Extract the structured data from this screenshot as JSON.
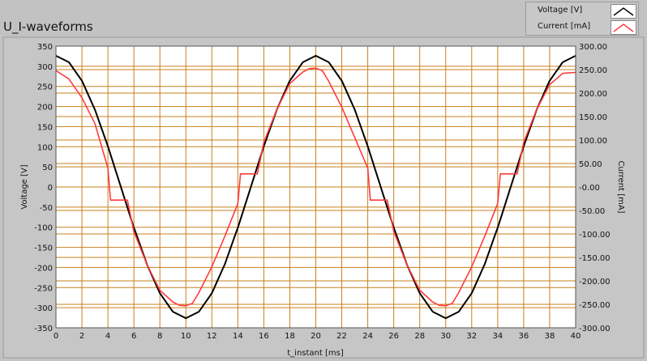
{
  "chart_data": {
    "type": "line",
    "title": "U_I-waveforms",
    "xlabel": "t_instant [ms]",
    "ylabel_left": "Voltage [V]",
    "ylabel_right": "Current [mA]",
    "xlim": [
      0,
      40
    ],
    "ylim_left": [
      -350,
      350
    ],
    "ylim_right": [
      -300,
      300
    ],
    "x_ticks": [
      "0",
      "2",
      "4",
      "6",
      "8",
      "10",
      "12",
      "14",
      "16",
      "18",
      "20",
      "22",
      "24",
      "26",
      "28",
      "30",
      "32",
      "34",
      "36",
      "38",
      "40"
    ],
    "y_left_ticks": [
      "350",
      "300",
      "250",
      "200",
      "150",
      "100",
      "50",
      "0",
      "-50",
      "-100",
      "-150",
      "-200",
      "-250",
      "-300",
      "-350"
    ],
    "y_right_ticks": [
      "300.00",
      "250.00",
      "200.00",
      "150.00",
      "100.00",
      "50.00",
      "-0.00",
      "-50.00",
      "-100.00",
      "-150.00",
      "-200.00",
      "-250.00",
      "-300.00"
    ],
    "grid": true,
    "legend_position": "top-right",
    "series": [
      {
        "name": "Voltage [V]",
        "axis": "left",
        "color": "#000000",
        "x": [
          0,
          1,
          2,
          3,
          4,
          5,
          6,
          7,
          8,
          9,
          10,
          11,
          12,
          13,
          14,
          15,
          16,
          17,
          18,
          19,
          20,
          21,
          22,
          23,
          24,
          25,
          26,
          27,
          28,
          29,
          30,
          31,
          32,
          33,
          34,
          35,
          36,
          37,
          38,
          39,
          40
        ],
        "values": [
          326,
          310,
          264,
          192,
          101,
          0,
          -101,
          -192,
          -264,
          -310,
          -326,
          -310,
          -264,
          -192,
          -101,
          0,
          101,
          192,
          264,
          310,
          326,
          310,
          264,
          192,
          101,
          0,
          -101,
          -192,
          -264,
          -310,
          -326,
          -310,
          -264,
          -192,
          -101,
          0,
          101,
          192,
          264,
          310,
          326
        ]
      },
      {
        "name": "Current [mA]",
        "axis": "right",
        "color": "#ff3b3b",
        "x": [
          0,
          1,
          2,
          3,
          4,
          4.2,
          5,
          5.5,
          6,
          7,
          8,
          9,
          9.5,
          10,
          10.5,
          11,
          12,
          13,
          14,
          14.2,
          15,
          15.5,
          16,
          17,
          18,
          19,
          19.5,
          20,
          20.5,
          21,
          22,
          23,
          24,
          24.2,
          25,
          25.5,
          26,
          27,
          28,
          29,
          29.5,
          30,
          30.5,
          31,
          32,
          33,
          34,
          34.2,
          35,
          35.5,
          36,
          37,
          38,
          39,
          40
        ],
        "values": [
          248,
          230,
          190,
          135,
          40,
          -28,
          -28,
          -28,
          -95,
          -165,
          -220,
          -245,
          -252,
          -253,
          -248,
          -225,
          -170,
          -105,
          -35,
          28,
          28,
          28,
          95,
          165,
          220,
          245,
          252,
          253,
          248,
          225,
          170,
          105,
          40,
          -28,
          -28,
          -28,
          -95,
          -165,
          -220,
          -245,
          -252,
          -253,
          -248,
          -225,
          -170,
          -105,
          -35,
          28,
          28,
          28,
          95,
          165,
          218,
          242,
          244
        ]
      }
    ]
  }
}
